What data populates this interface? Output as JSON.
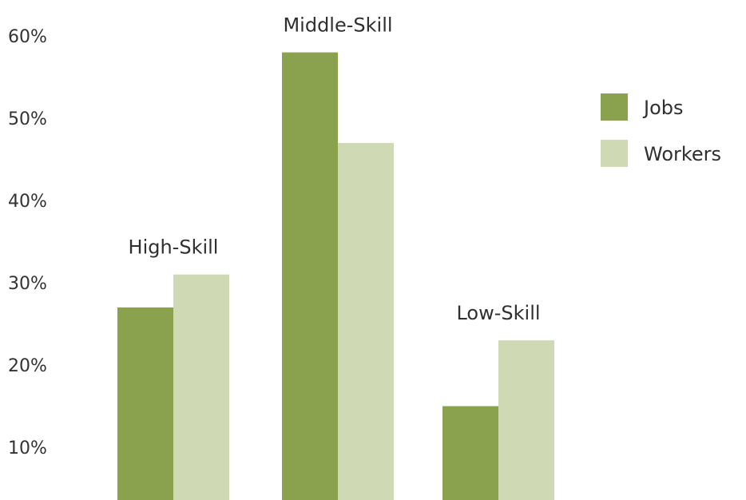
{
  "chart_data": {
    "type": "bar",
    "categories": [
      "High-Skill",
      "Middle-Skill",
      "Low-Skill"
    ],
    "series": [
      {
        "name": "Jobs",
        "values": [
          27,
          58,
          15
        ],
        "color": "#8aa24d"
      },
      {
        "name": "Workers",
        "values": [
          31,
          47,
          23
        ],
        "color": "#cfdab5"
      }
    ],
    "y_ticks": [
      10,
      20,
      30,
      40,
      50,
      60
    ],
    "y_tick_labels": [
      "10%",
      "20%",
      "30%",
      "40%",
      "50%",
      "60%"
    ],
    "ylim": [
      5,
      60
    ],
    "grid": false,
    "legend_position": "top-right"
  }
}
